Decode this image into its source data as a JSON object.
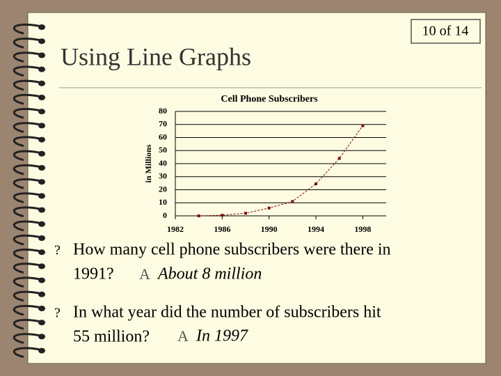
{
  "slide": {
    "page": "10 of 14",
    "title": "Using Line Graphs",
    "bullets": [
      {
        "marker": "?",
        "lines": [
          "How many cell phone subscribers were there in",
          "1991?"
        ],
        "answer_marker": "A",
        "answer": "About 8 million"
      },
      {
        "marker": "?",
        "lines": [
          "In what year did the number of subscribers hit",
          "55 million?"
        ],
        "answer_marker": "A",
        "answer": "In 1997"
      }
    ]
  },
  "chart_data": {
    "type": "line",
    "title": "Cell Phone Subscribers",
    "y_label": "in Millions",
    "x": [
      1984,
      1986,
      1988,
      1990,
      1992,
      1994,
      1996,
      1998
    ],
    "values": [
      0,
      0.5,
      2,
      6,
      11,
      24.5,
      44,
      69
    ],
    "color": "#7a1010",
    "xlim": [
      1982,
      2000
    ],
    "xticks": [
      1982,
      1986,
      1990,
      1994,
      1998
    ],
    "ylim": [
      0,
      80
    ],
    "yticks": [
      0,
      10,
      20,
      30,
      40,
      50,
      60,
      70,
      80
    ],
    "grid": true
  }
}
